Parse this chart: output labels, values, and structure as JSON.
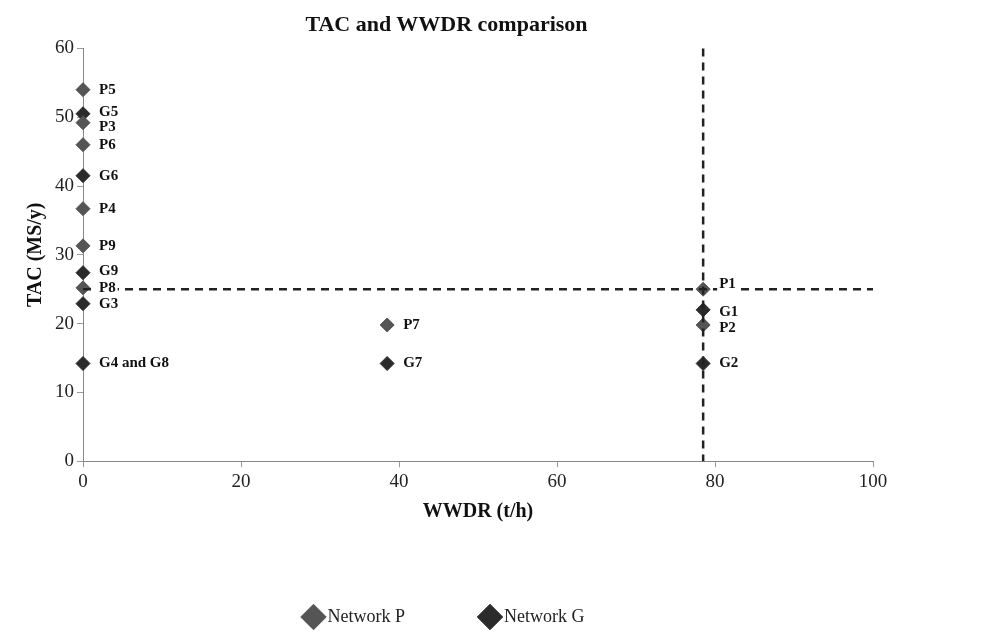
{
  "chart_data": {
    "type": "scatter",
    "title": "TAC and WWDR comparison",
    "xlabel": "WWDR (t/h)",
    "ylabel": "TAC (MS/y)",
    "xlim": [
      0,
      100
    ],
    "xticks": [
      0,
      20,
      40,
      60,
      80,
      100
    ],
    "ylim": [
      0,
      60
    ],
    "yticks": [
      0,
      10,
      20,
      30,
      40,
      50,
      60
    ],
    "grid": false,
    "legend": "bottom",
    "marker": "diamond",
    "series": [
      {
        "name": "Network P",
        "color": "#555555",
        "x": [
          78.5,
          78.5,
          0,
          0,
          0,
          0,
          38.5,
          0,
          0
        ],
        "values": [
          25,
          19.8,
          49.2,
          36.7,
          54,
          46,
          19.8,
          25.2,
          31.3
        ]
      },
      {
        "name": "Network G",
        "color": "#2b2b2b",
        "x": [
          78.5,
          78.5,
          0,
          0,
          0,
          0,
          38.5,
          null,
          0
        ],
        "values": [
          22,
          14.2,
          22.9,
          14.2,
          50.5,
          41.5,
          14.2,
          null,
          27.4
        ]
      }
    ],
    "ref_lines": [
      {
        "axis": "x",
        "value": 78.5,
        "color": "#222222",
        "line_style": "dashed"
      },
      {
        "axis": "y",
        "value": 25,
        "color": "#222222",
        "line_style": "dashed"
      }
    ],
    "annotations": [
      {
        "text": "P1",
        "x": 78.5,
        "y": 25.8
      },
      {
        "text": "P2",
        "x": 78.5,
        "y": 19.4
      },
      {
        "text": "P3",
        "x": 0,
        "y": 48.5
      },
      {
        "text": "P4",
        "x": 0,
        "y": 36.7
      },
      {
        "text": "P5",
        "x": 0,
        "y": 54
      },
      {
        "text": "P6",
        "x": 0,
        "y": 46
      },
      {
        "text": "P7",
        "x": 38.5,
        "y": 19.8
      },
      {
        "text": "P8",
        "x": 0,
        "y": 25.2
      },
      {
        "text": "P9",
        "x": 0,
        "y": 31.3
      },
      {
        "text": "G1",
        "x": 78.5,
        "y": 21.7
      },
      {
        "text": "G2",
        "x": 78.5,
        "y": 14.2
      },
      {
        "text": "G3",
        "x": 0,
        "y": 22.9
      },
      {
        "text": "G4 and G8",
        "x": 0,
        "y": 14.2
      },
      {
        "text": "G5",
        "x": 0,
        "y": 50.8
      },
      {
        "text": "G6",
        "x": 0,
        "y": 41.5
      },
      {
        "text": "G7",
        "x": 38.5,
        "y": 14.2
      },
      {
        "text": "G9",
        "x": 0,
        "y": 27.6
      }
    ]
  }
}
